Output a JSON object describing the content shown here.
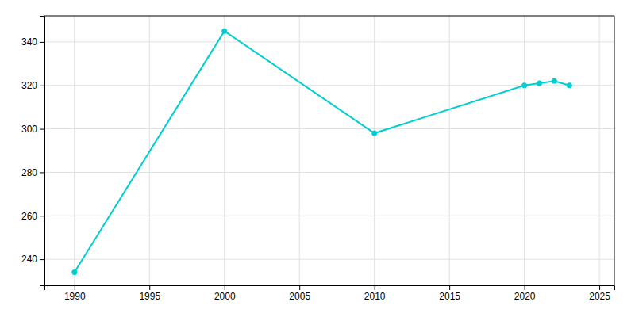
{
  "chart_data": {
    "type": "line",
    "x": [
      1990,
      2000,
      2010,
      2020,
      2021,
      2022,
      2023
    ],
    "values": [
      234,
      345,
      298,
      320,
      321,
      322,
      320
    ],
    "color": "#00CED1",
    "marker": "circle",
    "xlim": [
      1988,
      2026
    ],
    "ylim": [
      228,
      352
    ],
    "xticks": [
      1990,
      1995,
      2000,
      2005,
      2010,
      2015,
      2020,
      2025
    ],
    "yticks": [
      240,
      260,
      280,
      300,
      320,
      340
    ],
    "grid": true
  }
}
